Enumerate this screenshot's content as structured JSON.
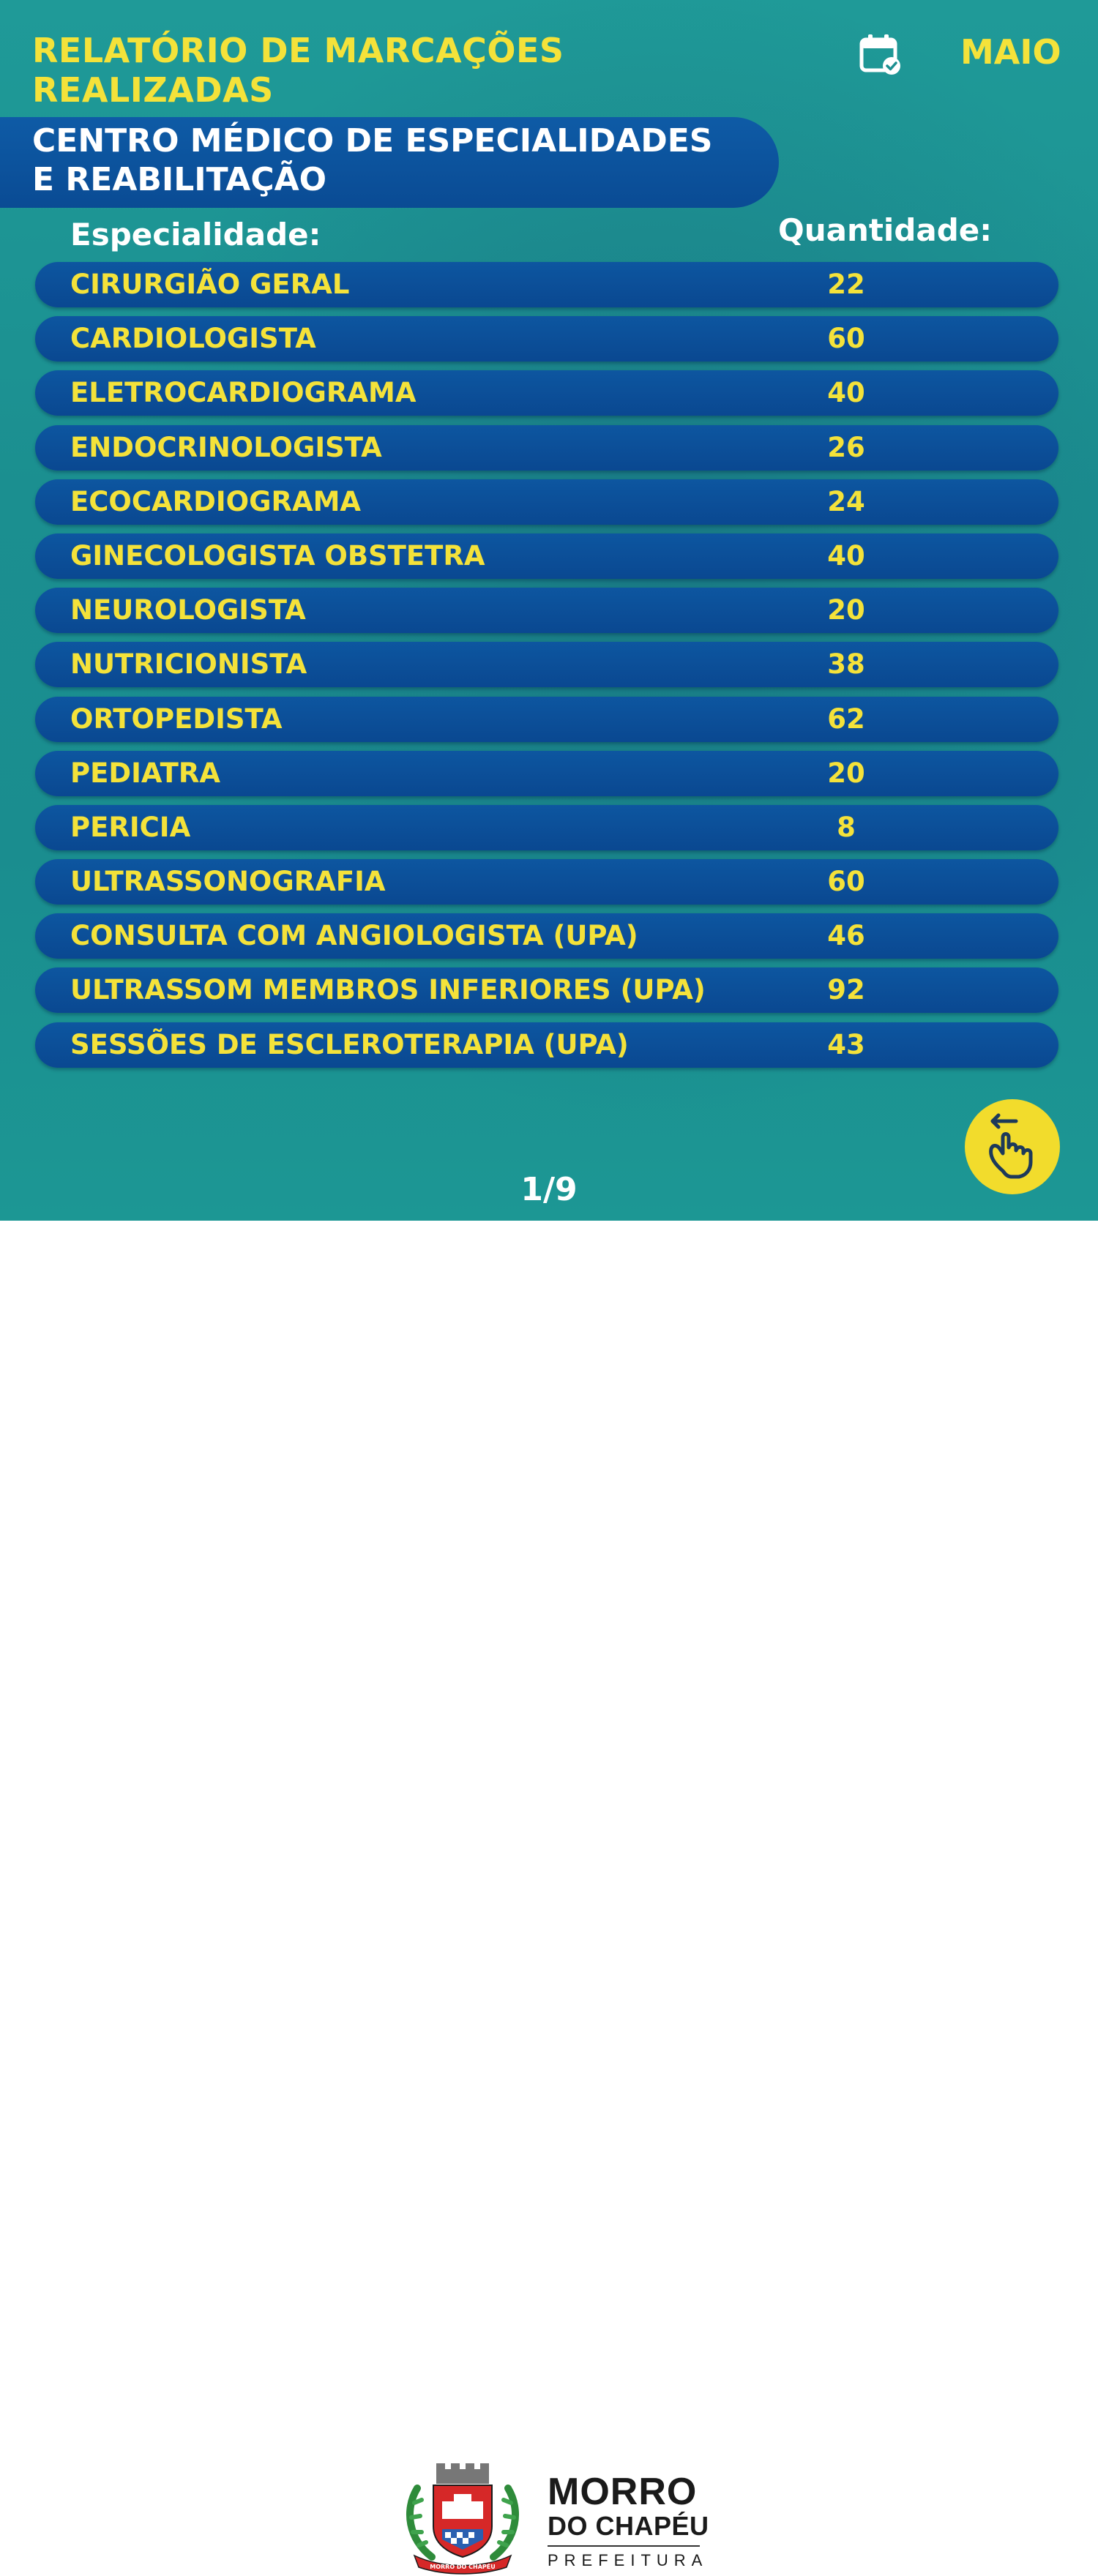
{
  "header": {
    "title_line1": "RELATÓRIO DE MARCAÇÕES",
    "title_line2": "REALIZADAS",
    "month": "MAIO",
    "calendar_icon": "calendar-check-icon"
  },
  "banner": {
    "line1": "CENTRO MÉDICO DE ESPECIALIDADES",
    "line2": "E REABILITAÇÃO"
  },
  "table": {
    "col_specialty": "Especialidade:",
    "col_quantity": "Quantidade:",
    "rows": [
      {
        "name": "CIRURGIÃO GERAL",
        "qty": "22"
      },
      {
        "name": "CARDIOLOGISTA",
        "qty": "60"
      },
      {
        "name": "ELETROCARDIOGRAMA",
        "qty": "40"
      },
      {
        "name": "ENDOCRINOLOGISTA",
        "qty": "26"
      },
      {
        "name": "ECOCARDIOGRAMA",
        "qty": "24"
      },
      {
        "name": "GINECOLOGISTA OBSTETRA",
        "qty": "40"
      },
      {
        "name": "NEUROLOGISTA",
        "qty": "20"
      },
      {
        "name": "NUTRICIONISTA",
        "qty": "38"
      },
      {
        "name": "ORTOPEDISTA",
        "qty": "62"
      },
      {
        "name": "PEDIATRA",
        "qty": "20"
      },
      {
        "name": "PERICIA",
        "qty": "8"
      },
      {
        "name": "ULTRASSONOGRAFIA",
        "qty": "60"
      },
      {
        "name": "CONSULTA COM ANGIOLOGISTA (UPA)",
        "qty": "46"
      },
      {
        "name": "ULTRASSOM MEMBROS INFERIORES (UPA)",
        "qty": "92"
      },
      {
        "name": "SESSÕES DE ESCLEROTERAPIA (UPA)",
        "qty": "43"
      }
    ]
  },
  "pagination": {
    "page": "1/9",
    "swipe_icon": "swipe-hand-icon"
  },
  "footer": {
    "brand_line1": "MORRO",
    "brand_line2": "DO CHAPÉU",
    "brand_line3": "PREFEITURA",
    "crest_icon": "municipal-crest-icon",
    "crest_ribbon_text": "MORRO DO CHAPÉU"
  },
  "colors": {
    "accent_yellow": "#f4e23a",
    "row_blue": "#0b4f99",
    "background_teal": "#1b8f90"
  }
}
